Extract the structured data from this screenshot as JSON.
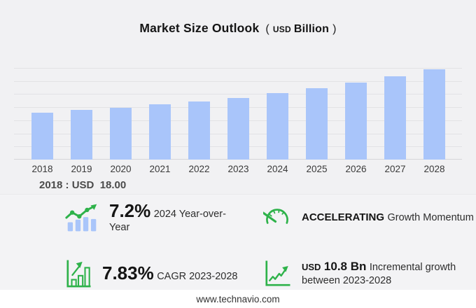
{
  "title": {
    "main": "Market Size Outlook",
    "open_paren": "(",
    "currency": "USD",
    "unit": "Billion",
    "close_paren": ")"
  },
  "chart_data": {
    "type": "bar",
    "title": "Market Size Outlook (USD Billion)",
    "categories": [
      "2018",
      "2019",
      "2020",
      "2021",
      "2022",
      "2023",
      "2024",
      "2025",
      "2026",
      "2027",
      "2028"
    ],
    "values": [
      18.0,
      18.9,
      19.9,
      21.0,
      22.2,
      23.6,
      25.3,
      27.3,
      29.5,
      31.8,
      34.4
    ],
    "xlabel": "",
    "ylabel": "",
    "ylim": [
      0,
      35
    ],
    "gridline_step": 5,
    "grid": true,
    "legend": false,
    "bar_color": "#a9c5fa",
    "annotations": [
      {
        "year": "2018",
        "text": "2018 : USD  18.00"
      }
    ]
  },
  "annotation": {
    "label": "2018 : USD  18.00"
  },
  "stats": {
    "yoy": {
      "icon": "bar-chart-trend-icon",
      "value": "7.2%",
      "label": "2024 Year-over-Year"
    },
    "momentum": {
      "icon": "speedometer-icon",
      "value": "ACCELERATING",
      "label": "Growth Momentum"
    },
    "cagr": {
      "icon": "bar-chart-growth-icon",
      "value": "7.83%",
      "label": "CAGR 2023-2028"
    },
    "incremental": {
      "icon": "line-chart-growth-icon",
      "currency": "USD",
      "value": "10.8 Bn",
      "label_line1": "Incremental growth",
      "label_line2": "between 2023-2028"
    }
  },
  "footer": {
    "website": "www.technavio.com"
  },
  "colors": {
    "background": "#f1f1f3",
    "bar": "#a9c5fa",
    "accent_green": "#2eb24a",
    "footer_background": "#ffffff",
    "gridline": "#e2e2e5"
  }
}
